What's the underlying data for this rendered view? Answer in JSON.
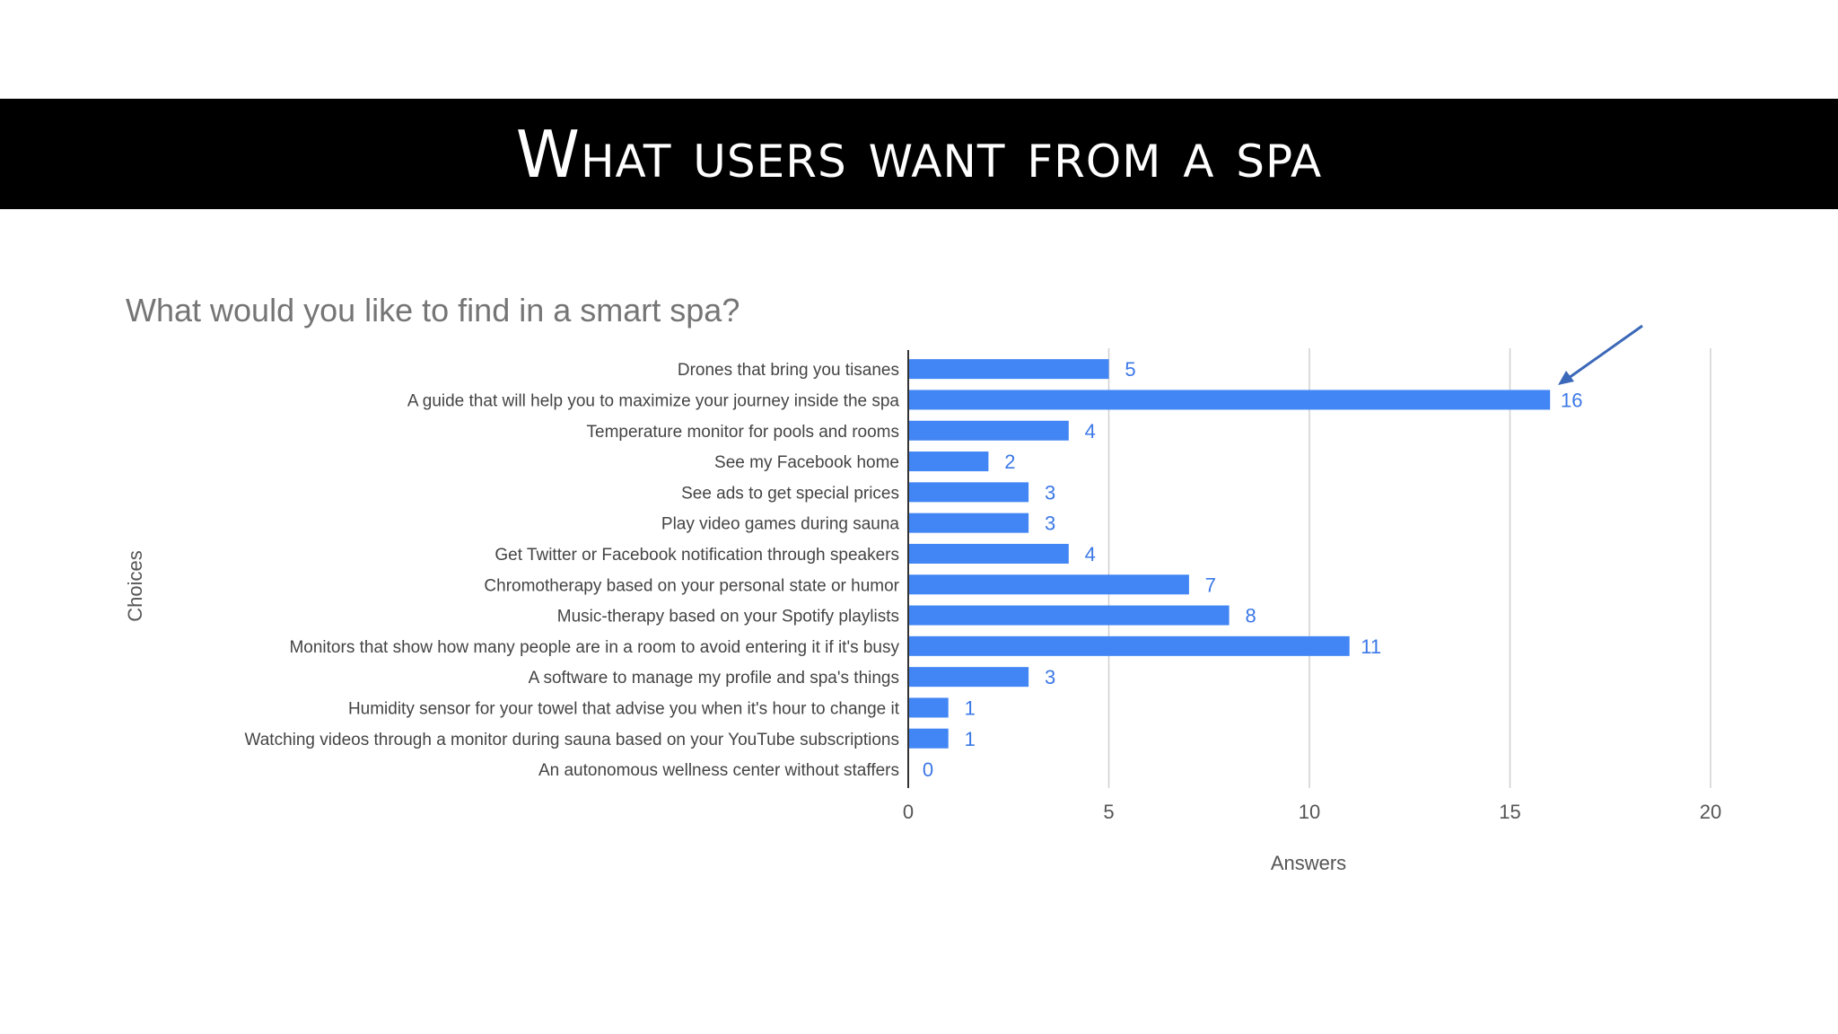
{
  "slide": {
    "title": "What users want from a spa"
  },
  "chart_data": {
    "type": "bar",
    "orientation": "horizontal",
    "title": "What would you like to find in a smart spa?",
    "xlabel": "Answers",
    "ylabel": "Choices",
    "xlim": [
      0,
      20
    ],
    "xticks": [
      0,
      5,
      10,
      15,
      20
    ],
    "grid": true,
    "legend": "none",
    "bar_color": "#4285f4",
    "label_color": "#3b78e7",
    "annotation": "arrow pointing at the 16 bar",
    "categories": [
      "Drones that bring you tisanes",
      "A guide that will help you to maximize your journey inside the spa",
      "Temperature monitor for pools and rooms",
      "See my Facebook home",
      "See ads to get special prices",
      "Play video games during sauna",
      "Get Twitter or Facebook notification through speakers",
      "Chromotherapy based on your personal state or humor",
      "Music-therapy based on your Spotify playlists",
      "Monitors that show how many people are in a room to avoid entering it if it's busy",
      "A software to manage my profile and spa's things",
      "Humidity sensor for your towel that advise you when it's hour to change it",
      "Watching videos through a monitor during sauna based on your YouTube subscriptions",
      "An autonomous wellness center without staffers"
    ],
    "values": [
      5,
      16,
      4,
      2,
      3,
      3,
      4,
      7,
      8,
      11,
      3,
      1,
      1,
      0
    ]
  }
}
